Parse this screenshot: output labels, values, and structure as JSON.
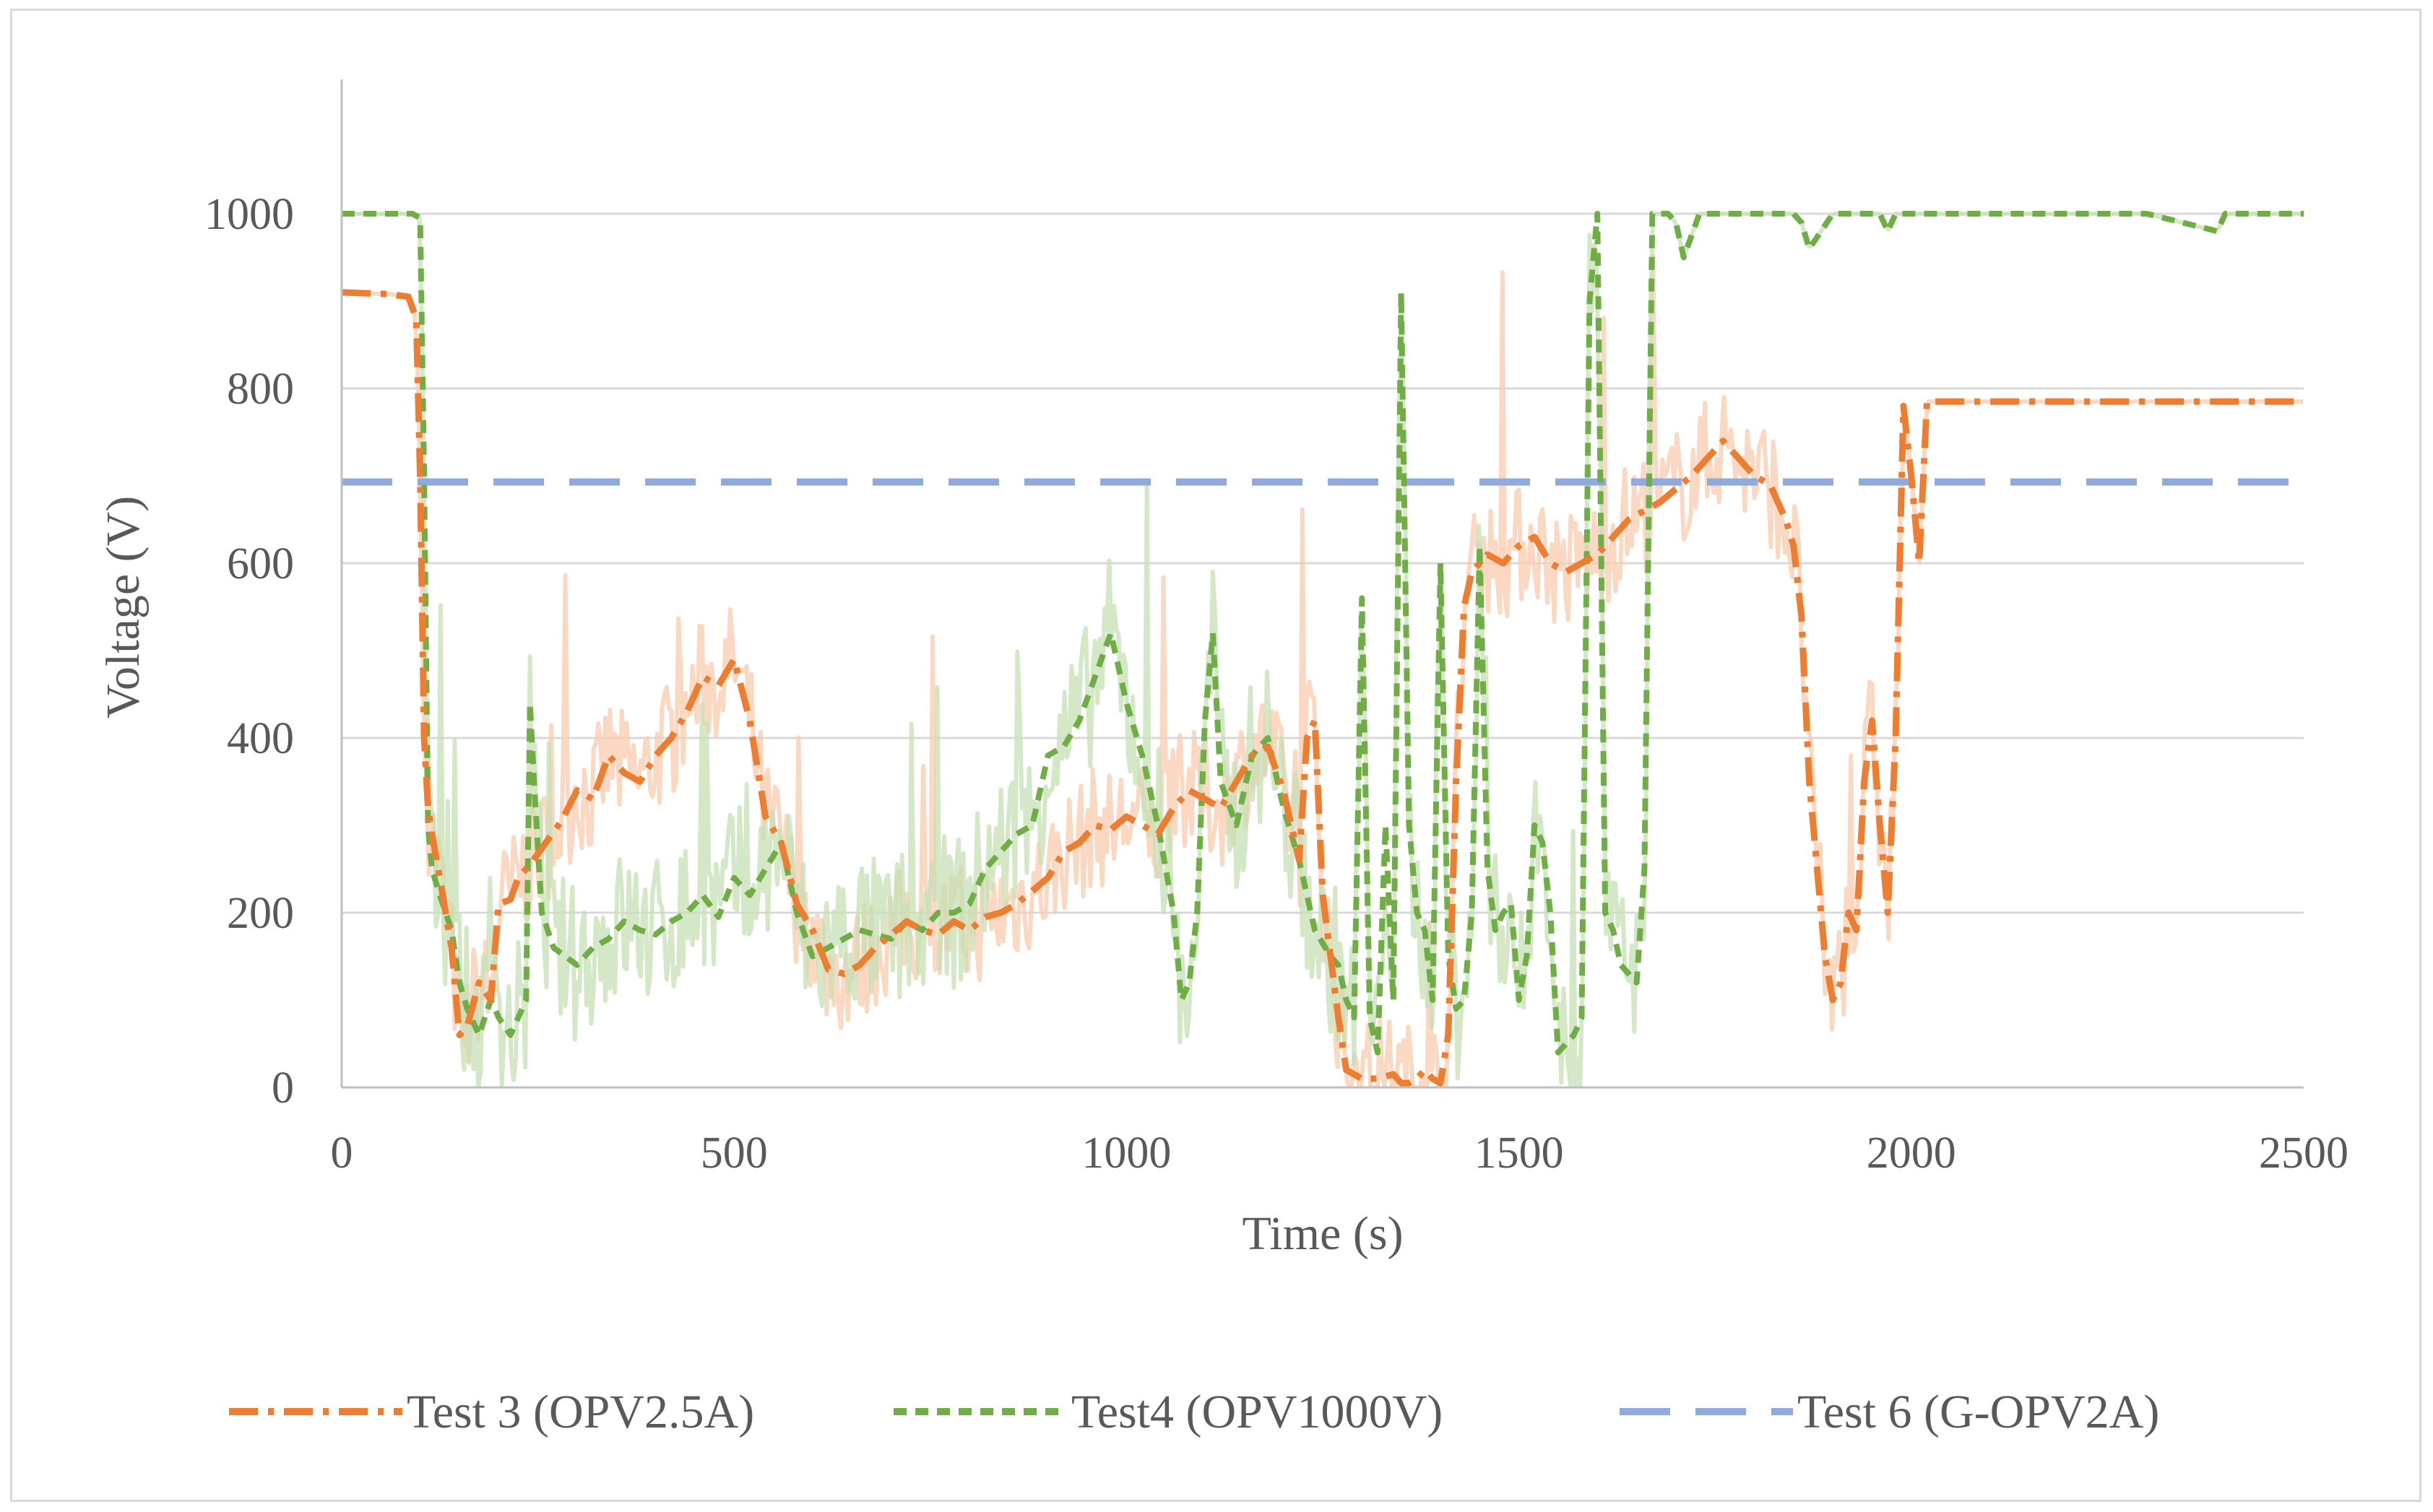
{
  "chart_data": {
    "type": "line",
    "title": "",
    "xlabel": "Time (s)",
    "ylabel": "Voltage (V)",
    "xlim": [
      0,
      2500
    ],
    "ylim": [
      0,
      1100
    ],
    "xticks": [
      0,
      500,
      1000,
      1500,
      2000,
      2500
    ],
    "yticks": [
      0,
      200,
      400,
      600,
      800,
      1000
    ],
    "grid": "horizontal",
    "legend_position": "bottom",
    "colors": {
      "test3": "#ed7d31",
      "test4": "#70ad47",
      "test6": "#8faadc",
      "grid": "#d9d9d9",
      "axis": "#bfbfbf",
      "text": "#595959"
    },
    "series": [
      {
        "name": "Test 3 (OPV2.5A)",
        "style": "dash-dot",
        "color": "#ed7d31",
        "x": [
          0,
          60,
          85,
          95,
          100,
          105,
          110,
          115,
          125,
          140,
          150,
          160,
          175,
          190,
          200,
          215,
          225,
          240,
          260,
          280,
          300,
          320,
          340,
          360,
          380,
          400,
          420,
          440,
          460,
          480,
          500,
          520,
          540,
          560,
          580,
          600,
          620,
          640,
          660,
          680,
          700,
          720,
          740,
          760,
          780,
          800,
          820,
          840,
          860,
          880,
          900,
          920,
          940,
          960,
          980,
          1000,
          1020,
          1040,
          1060,
          1080,
          1100,
          1120,
          1140,
          1160,
          1180,
          1200,
          1210,
          1220,
          1230,
          1240,
          1250,
          1260,
          1270,
          1280,
          1300,
          1320,
          1340,
          1350,
          1360,
          1370,
          1380,
          1390,
          1400,
          1410,
          1420,
          1430,
          1440,
          1460,
          1480,
          1500,
          1520,
          1540,
          1560,
          1580,
          1600,
          1620,
          1640,
          1660,
          1680,
          1700,
          1720,
          1740,
          1760,
          1780,
          1800,
          1820,
          1840,
          1850,
          1860,
          1870,
          1880,
          1890,
          1900,
          1910,
          1920,
          1930,
          1940,
          1950,
          1960,
          1970,
          1980,
          1990,
          2000,
          2010,
          2020,
          2100,
          2200,
          2300,
          2400,
          2500
        ],
        "y": [
          910,
          908,
          905,
          880,
          700,
          400,
          320,
          290,
          240,
          160,
          60,
          70,
          120,
          100,
          210,
          215,
          240,
          255,
          280,
          305,
          340,
          330,
          380,
          360,
          350,
          380,
          400,
          430,
          470,
          460,
          490,
          420,
          310,
          280,
          210,
          180,
          135,
          130,
          140,
          160,
          175,
          190,
          180,
          175,
          190,
          180,
          195,
          200,
          210,
          225,
          240,
          270,
          280,
          300,
          295,
          310,
          300,
          290,
          320,
          340,
          330,
          320,
          350,
          380,
          390,
          340,
          300,
          260,
          400,
          420,
          220,
          150,
          80,
          20,
          10,
          10,
          15,
          5,
          5,
          10,
          20,
          10,
          5,
          60,
          350,
          550,
          590,
          610,
          600,
          620,
          630,
          600,
          590,
          600,
          610,
          630,
          650,
          660,
          670,
          685,
          700,
          720,
          740,
          720,
          700,
          690,
          650,
          620,
          540,
          350,
          250,
          150,
          100,
          120,
          200,
          180,
          350,
          420,
          300,
          200,
          400,
          780,
          700,
          600,
          785,
          785,
          785,
          785,
          785,
          785
        ]
      },
      {
        "name": "Test4 (OPV1000V)",
        "style": "dashed",
        "color": "#70ad47",
        "x": [
          0,
          90,
          100,
          105,
          110,
          115,
          125,
          140,
          150,
          160,
          175,
          190,
          200,
          215,
          225,
          235,
          240,
          245,
          255,
          270,
          285,
          300,
          320,
          340,
          360,
          380,
          400,
          420,
          440,
          460,
          480,
          500,
          520,
          540,
          560,
          580,
          600,
          620,
          640,
          660,
          680,
          700,
          720,
          740,
          760,
          780,
          800,
          820,
          840,
          860,
          880,
          900,
          920,
          940,
          960,
          980,
          1000,
          1020,
          1040,
          1060,
          1070,
          1080,
          1090,
          1100,
          1110,
          1120,
          1140,
          1160,
          1180,
          1200,
          1220,
          1240,
          1260,
          1270,
          1280,
          1290,
          1300,
          1310,
          1320,
          1330,
          1340,
          1350,
          1360,
          1370,
          1380,
          1390,
          1400,
          1410,
          1420,
          1430,
          1440,
          1450,
          1460,
          1470,
          1480,
          1490,
          1500,
          1510,
          1520,
          1530,
          1540,
          1550,
          1560,
          1570,
          1580,
          1590,
          1600,
          1610,
          1620,
          1630,
          1640,
          1650,
          1660,
          1670,
          1690,
          1700,
          1710,
          1730,
          1800,
          1850,
          1860,
          1870,
          1900,
          1960,
          1970,
          1980,
          2000,
          2100,
          2200,
          2300,
          2390,
          2400,
          2500
        ],
        "y": [
          1000,
          1000,
          995,
          700,
          300,
          250,
          220,
          180,
          120,
          90,
          60,
          100,
          80,
          60,
          80,
          100,
          440,
          350,
          200,
          160,
          150,
          140,
          160,
          170,
          190,
          180,
          175,
          190,
          200,
          220,
          195,
          240,
          220,
          250,
          280,
          200,
          150,
          160,
          170,
          180,
          175,
          170,
          190,
          180,
          200,
          200,
          210,
          250,
          270,
          290,
          300,
          380,
          390,
          420,
          470,
          520,
          440,
          380,
          300,
          200,
          100,
          120,
          200,
          420,
          520,
          350,
          300,
          380,
          400,
          320,
          260,
          180,
          150,
          140,
          100,
          80,
          560,
          80,
          40,
          300,
          100,
          910,
          300,
          200,
          180,
          100,
          600,
          150,
          90,
          100,
          200,
          620,
          250,
          180,
          200,
          210,
          100,
          150,
          300,
          280,
          200,
          40,
          50,
          60,
          80,
          900,
          1000,
          200,
          180,
          140,
          130,
          120,
          250,
          1000,
          1000,
          990,
          950,
          1000,
          1000,
          1000,
          990,
          960,
          1000,
          1000,
          980,
          1000,
          1000,
          1000,
          1000,
          1000,
          980,
          1000,
          1000
        ]
      },
      {
        "name": "Test 6 (G-OPV2A)",
        "style": "long-dash",
        "color": "#8faadc",
        "x": [
          0,
          2500
        ],
        "y": [
          693,
          693
        ]
      }
    ]
  },
  "legend": [
    {
      "label": "Test 3 (OPV2.5A)",
      "color": "#ed7d31",
      "style": "dash-dot"
    },
    {
      "label": "Test4 (OPV1000V)",
      "color": "#70ad47",
      "style": "dashed"
    },
    {
      "label": "Test 6 (G-OPV2A)",
      "color": "#8faadc",
      "style": "long-dash"
    }
  ]
}
